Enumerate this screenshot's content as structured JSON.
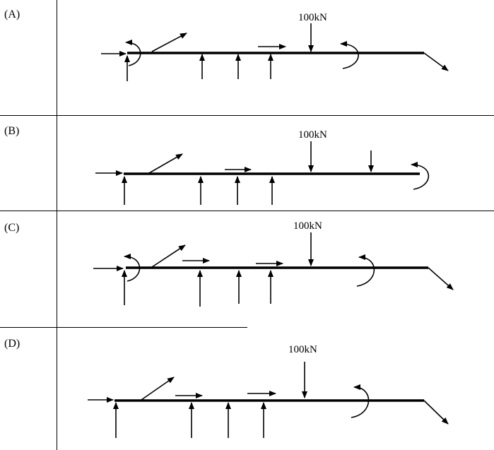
{
  "options": [
    {
      "label": "(A)",
      "load": "100kN"
    },
    {
      "label": "(B)",
      "load": "100kN"
    },
    {
      "label": "(C)",
      "load": "100kN"
    },
    {
      "label": "(D)",
      "load": "100kN"
    }
  ]
}
